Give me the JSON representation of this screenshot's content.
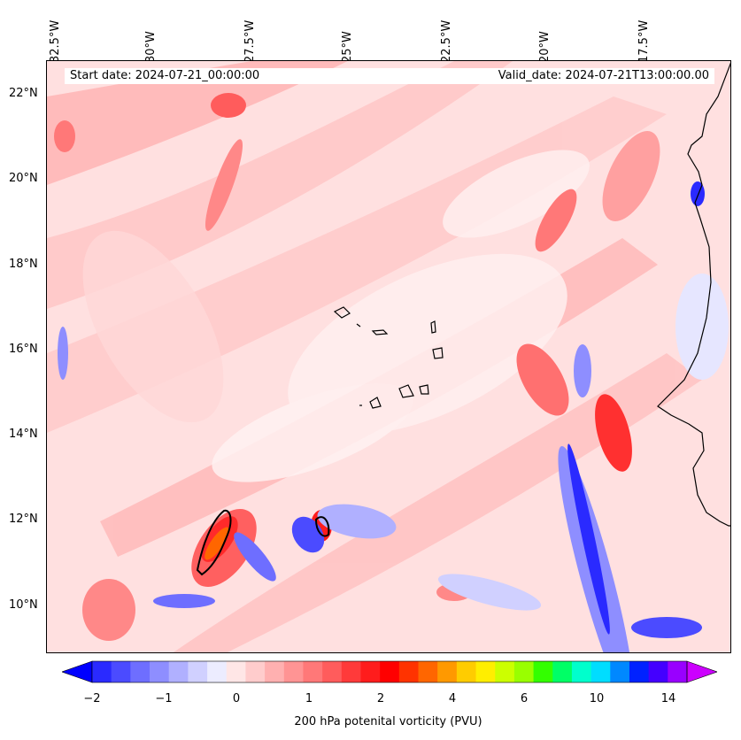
{
  "header": {
    "start_date": "Start date: 2024-07-21_00:00:00",
    "valid_date": "Valid_date: 2024-07-21T13:00:00.00"
  },
  "axes": {
    "lon_labels": [
      "32.5°W",
      "30°W",
      "27.5°W",
      "25°W",
      "22.5°W",
      "20°W",
      "17.5°W"
    ],
    "lat_labels": [
      "22°N",
      "20°N",
      "18°N",
      "16°N",
      "14°N",
      "12°N",
      "10°N"
    ]
  },
  "colorbar": {
    "label": "200 hPa potenital vorticity (PVU)",
    "ticks": [
      "−2",
      "−1",
      "0",
      "1",
      "2",
      "4",
      "6",
      "10",
      "14"
    ],
    "colors": [
      "#0000ff",
      "#2a2aff",
      "#4b4bff",
      "#6e6eff",
      "#8e8eff",
      "#b0b0ff",
      "#d0d0ff",
      "#ececff",
      "#ffe6e6",
      "#ffcccc",
      "#ffb0b0",
      "#ff9494",
      "#ff7878",
      "#ff5c5c",
      "#ff3a3a",
      "#ff1c1c",
      "#ff0000",
      "#ff3300",
      "#ff6600",
      "#ff9900",
      "#ffcc00",
      "#ffee00",
      "#ccff00",
      "#99ff00",
      "#33ff00",
      "#00ff66",
      "#00ffcc",
      "#00ddff",
      "#0088ff",
      "#0022ff",
      "#4400ff",
      "#9900ff",
      "#cc00ff"
    ]
  },
  "map": {
    "background_color": "#ffe6e6",
    "coast_color": "#000000"
  }
}
